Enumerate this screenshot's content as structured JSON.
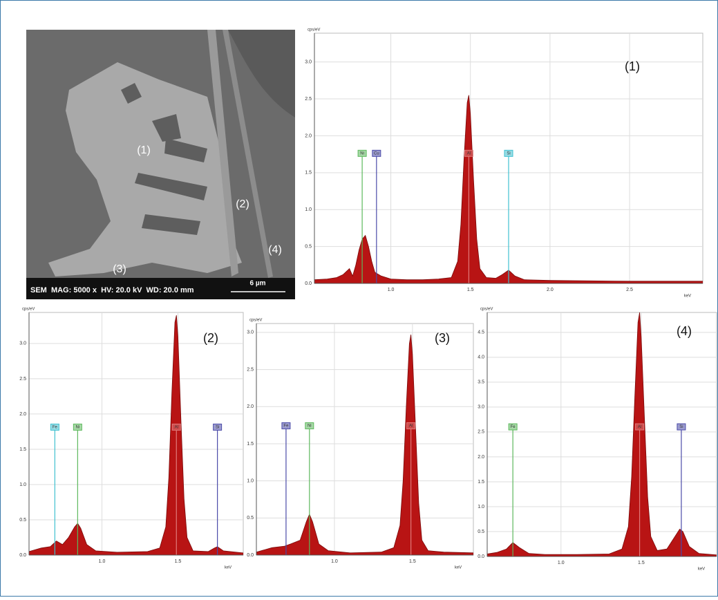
{
  "image": {
    "labels": [
      "(1)",
      "(2)",
      "(3)",
      "(4)"
    ],
    "caption": "SEM  MAG: 5000 x  HV: 20.0 kV  WD: 20.0 mm",
    "scale_bar": "6 µm"
  },
  "chart_data": [
    {
      "type": "area",
      "title": "(1)",
      "ylabel": "cps/eV",
      "xlabel": "keV",
      "color": "#b81414",
      "grid": true,
      "xlim": [
        0.52,
        2.96
      ],
      "ylim": [
        0,
        3.39
      ],
      "xticks": [
        {
          "value": 1,
          "label": "1.0"
        },
        {
          "value": 1.5,
          "label": "1.5"
        },
        {
          "value": 2,
          "label": "2.0"
        },
        {
          "value": 2.5,
          "label": "2.5"
        }
      ],
      "yticks": [
        {
          "value": 0,
          "label": "0.0"
        },
        0.5,
        {
          "value": 1,
          "label": "1.0"
        },
        1.5,
        {
          "value": 2,
          "label": "2.0"
        },
        2.5,
        {
          "value": 3,
          "label": "3.0"
        }
      ],
      "x": [
        0.52,
        0.6,
        0.66,
        0.7,
        0.74,
        0.76,
        0.78,
        0.8,
        0.82,
        0.84,
        0.86,
        0.88,
        0.9,
        0.94,
        1.0,
        1.1,
        1.2,
        1.3,
        1.38,
        1.42,
        1.44,
        1.46,
        1.48,
        1.49,
        1.5,
        1.52,
        1.54,
        1.56,
        1.6,
        1.66,
        1.7,
        1.74,
        1.78,
        1.84,
        2.0,
        2.5,
        2.96
      ],
      "values": [
        0.05,
        0.06,
        0.08,
        0.12,
        0.2,
        0.1,
        0.25,
        0.45,
        0.6,
        0.65,
        0.5,
        0.3,
        0.15,
        0.1,
        0.06,
        0.05,
        0.05,
        0.06,
        0.08,
        0.3,
        0.8,
        1.7,
        2.45,
        2.55,
        2.3,
        1.4,
        0.6,
        0.2,
        0.08,
        0.07,
        0.12,
        0.18,
        0.1,
        0.05,
        0.04,
        0.03,
        0.03
      ],
      "peaks": [
        {
          "label": "Ni",
          "x": 0.82,
          "height": 1.72,
          "color": "#5cb85c"
        },
        {
          "label": "Cu",
          "x": 0.91,
          "height": 1.72,
          "color": "#4a4aa8"
        },
        {
          "label": "Al",
          "x": 1.49,
          "height": 1.72,
          "color": "#e07a7a"
        },
        {
          "label": "Si",
          "x": 1.74,
          "height": 1.72,
          "color": "#3fc0d0"
        }
      ]
    },
    {
      "type": "area",
      "title": "(2)",
      "ylabel": "cps/eV",
      "xlabel": "keV",
      "color": "#b81414",
      "grid": true,
      "xlim": [
        0.52,
        1.93
      ],
      "ylim": [
        0,
        3.44
      ],
      "xticks": [
        {
          "value": 1,
          "label": "1.0"
        },
        {
          "value": 1.5,
          "label": "1.5"
        }
      ],
      "yticks": [
        {
          "value": 0,
          "label": "0.0"
        },
        0.5,
        {
          "value": 1,
          "label": "1.0"
        },
        1.5,
        {
          "value": 2,
          "label": "2.0"
        },
        2.5,
        {
          "value": 3,
          "label": "3.0"
        }
      ],
      "x": [
        0.52,
        0.6,
        0.66,
        0.7,
        0.74,
        0.78,
        0.82,
        0.84,
        0.86,
        0.9,
        0.96,
        1.1,
        1.3,
        1.38,
        1.42,
        1.44,
        1.46,
        1.48,
        1.49,
        1.5,
        1.52,
        1.54,
        1.56,
        1.6,
        1.7,
        1.74,
        1.76,
        1.8,
        1.93
      ],
      "values": [
        0.05,
        0.1,
        0.12,
        0.2,
        0.15,
        0.25,
        0.4,
        0.45,
        0.38,
        0.15,
        0.06,
        0.04,
        0.05,
        0.1,
        0.4,
        1.1,
        2.3,
        3.3,
        3.4,
        3.1,
        1.9,
        0.8,
        0.25,
        0.06,
        0.05,
        0.1,
        0.12,
        0.06,
        0.03
      ],
      "peaks": [
        {
          "label": "Fe",
          "x": 0.69,
          "height": 1.77,
          "color": "#3fc0d0"
        },
        {
          "label": "Ni",
          "x": 0.84,
          "height": 1.77,
          "color": "#5cb85c"
        },
        {
          "label": "Al",
          "x": 1.49,
          "height": 1.77,
          "color": "#e07a7a"
        },
        {
          "label": "Si",
          "x": 1.76,
          "height": 1.77,
          "color": "#4a4aa8"
        }
      ]
    },
    {
      "type": "area",
      "title": "(3)",
      "ylabel": "cps/eV",
      "xlabel": "keV",
      "color": "#b81414",
      "grid": true,
      "xlim": [
        0.5,
        1.89
      ],
      "ylim": [
        0,
        3.12
      ],
      "xticks": [
        {
          "value": 1,
          "label": "1.0"
        },
        {
          "value": 1.5,
          "label": "1.5"
        }
      ],
      "yticks": [
        {
          "value": 0,
          "label": "0.0"
        },
        0.5,
        {
          "value": 1,
          "label": "1.0"
        },
        1.5,
        {
          "value": 2,
          "label": "2.0"
        },
        2.5,
        {
          "value": 3,
          "label": "3.0"
        }
      ],
      "x": [
        0.5,
        0.6,
        0.68,
        0.72,
        0.78,
        0.82,
        0.84,
        0.86,
        0.9,
        0.96,
        1.1,
        1.3,
        1.38,
        1.42,
        1.44,
        1.46,
        1.48,
        1.49,
        1.5,
        1.52,
        1.54,
        1.56,
        1.6,
        1.7,
        1.89
      ],
      "values": [
        0.04,
        0.1,
        0.12,
        0.15,
        0.2,
        0.45,
        0.55,
        0.45,
        0.15,
        0.06,
        0.03,
        0.04,
        0.1,
        0.4,
        1.0,
        2.0,
        2.85,
        2.97,
        2.7,
        1.7,
        0.7,
        0.2,
        0.06,
        0.04,
        0.03
      ],
      "peaks": [
        {
          "label": "Fe",
          "x": 0.69,
          "height": 1.7,
          "color": "#4a4aa8"
        },
        {
          "label": "Ni",
          "x": 0.84,
          "height": 1.7,
          "color": "#5cb85c"
        },
        {
          "label": "Al",
          "x": 1.49,
          "height": 1.7,
          "color": "#e07a7a"
        }
      ]
    },
    {
      "type": "area",
      "title": "(4)",
      "ylabel": "cps/eV",
      "xlabel": "keV",
      "color": "#b81414",
      "grid": true,
      "xlim": [
        0.54,
        1.97
      ],
      "ylim": [
        0,
        4.9
      ],
      "xticks": [
        {
          "value": 1,
          "label": "1.0"
        },
        {
          "value": 1.5,
          "label": "1.5"
        }
      ],
      "yticks": [
        {
          "value": 0,
          "label": "0.0"
        },
        0.5,
        {
          "value": 1,
          "label": "1.0"
        },
        1.5,
        {
          "value": 2,
          "label": "2.0"
        },
        2.5,
        {
          "value": 3,
          "label": "3.0"
        },
        3.5,
        {
          "value": 4,
          "label": "4.0"
        },
        4.5
      ],
      "x": [
        0.54,
        0.6,
        0.66,
        0.7,
        0.74,
        0.8,
        0.9,
        1.1,
        1.3,
        1.38,
        1.42,
        1.44,
        1.46,
        1.48,
        1.49,
        1.5,
        1.52,
        1.54,
        1.56,
        1.6,
        1.66,
        1.7,
        1.74,
        1.76,
        1.8,
        1.86,
        1.97
      ],
      "values": [
        0.05,
        0.08,
        0.15,
        0.28,
        0.18,
        0.06,
        0.04,
        0.04,
        0.05,
        0.15,
        0.6,
        1.6,
        3.2,
        4.7,
        4.9,
        4.4,
        2.8,
        1.2,
        0.4,
        0.12,
        0.15,
        0.35,
        0.55,
        0.5,
        0.2,
        0.06,
        0.03
      ],
      "peaks": [
        {
          "label": "Fe",
          "x": 0.7,
          "height": 2.54,
          "color": "#5cb85c"
        },
        {
          "label": "Al",
          "x": 1.49,
          "height": 2.54,
          "color": "#e07a7a"
        },
        {
          "label": "Si",
          "x": 1.75,
          "height": 2.54,
          "color": "#4a4aa8"
        }
      ]
    }
  ]
}
